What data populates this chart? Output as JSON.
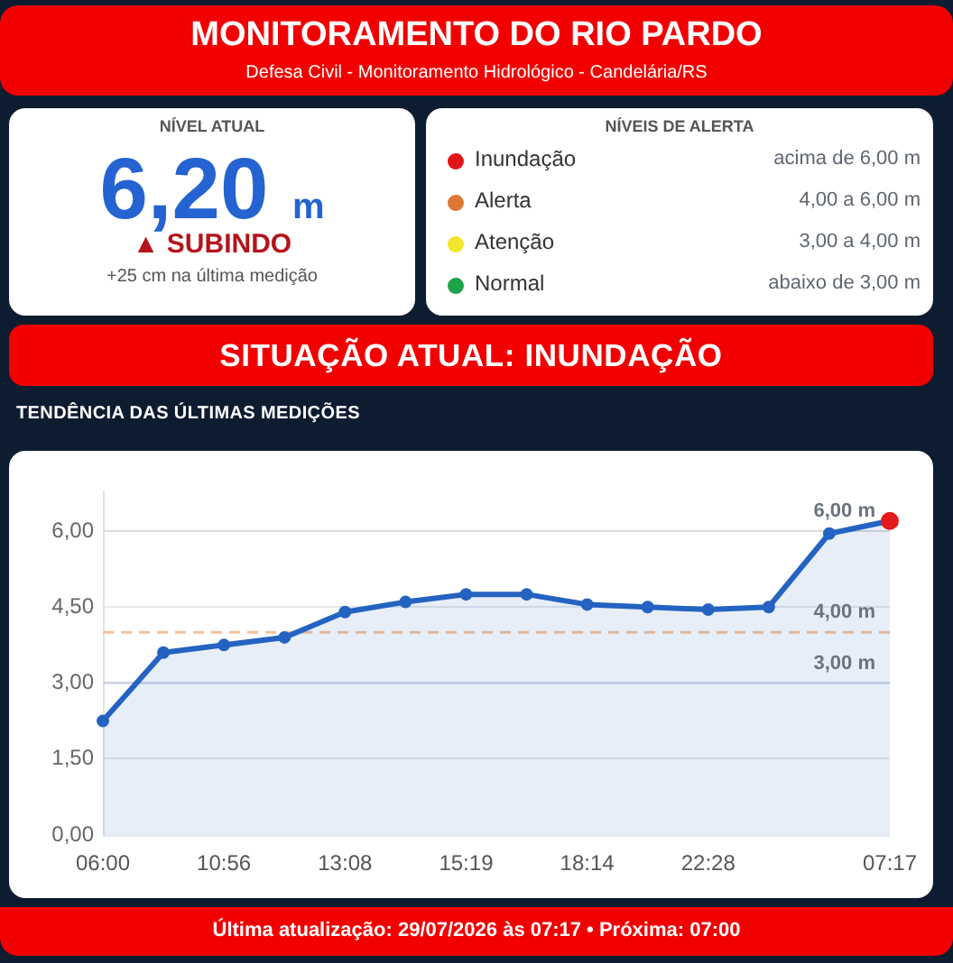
{
  "chart_data": {
    "type": "area",
    "title": "MONITORAMENTO DO RIO PARDO",
    "subtitle": "Defesa Civil - Monitoramento Hidrológico - Candelária/RS",
    "annotations": [
      "NÍVEL ATUAL",
      "6,20 m",
      "▲ SUBINDO",
      "+25 cm na última medição",
      "NÍVEIS DE ALERTA",
      "Inundação",
      "acima de 6,00 m",
      "Alerta",
      "4,00 a 6,00 m",
      "Atenção",
      "3,00 a 4,00 m",
      "Normal",
      "abaixo de 3,00 m",
      "SITUAÇÃO ATUAL: INUNDAÇÃO",
      "TENDÊNCIA DAS ÚLTIMAS MEDIÇÕES",
      "Última atualização: 29/07/2026 às 07:17 • Próxima: 07:00"
    ],
    "categories": [
      "06:00",
      null,
      "10:56",
      null,
      "13:08",
      null,
      "15:19",
      null,
      "18:14",
      null,
      "22:28",
      null,
      null,
      "07:17"
    ],
    "values": [
      2.25,
      3.6,
      3.75,
      3.9,
      4.4,
      4.6,
      4.75,
      4.75,
      4.55,
      4.5,
      4.45,
      4.5,
      5.95,
      6.2
    ],
    "color": "#2563c2",
    "colors": [
      "#2563c2",
      "#2563c2",
      "#2563c2",
      "#2563c2",
      "#2563c2",
      "#2563c2",
      "#2563c2",
      "#2563c2",
      "#2563c2",
      "#2563c2",
      "#2563c2",
      "#2563c2",
      "#2563c2",
      "#e31b1b"
    ],
    "ylim": [
      0,
      6.8
    ],
    "yticks": [
      {
        "value": 0,
        "label": "0,00"
      },
      {
        "value": 1.5,
        "label": "1,50"
      },
      {
        "value": 3,
        "label": "3,00"
      },
      {
        "value": 4.5,
        "label": "4,50"
      },
      {
        "value": 6,
        "label": "6,00"
      }
    ],
    "grid": "y",
    "marker": "circle",
    "line_style": "solid",
    "ref_lines": [
      {
        "axis": "y",
        "value": 6,
        "label": "6,00 m",
        "color": "#dcdcdc"
      },
      {
        "axis": "y",
        "value": 4,
        "label": "4,00 m",
        "color": "#f3c29a",
        "line_style": "dashed"
      },
      {
        "axis": "y",
        "value": 3,
        "label": "3,00 m",
        "color": "#c3cbe0"
      }
    ]
  }
}
